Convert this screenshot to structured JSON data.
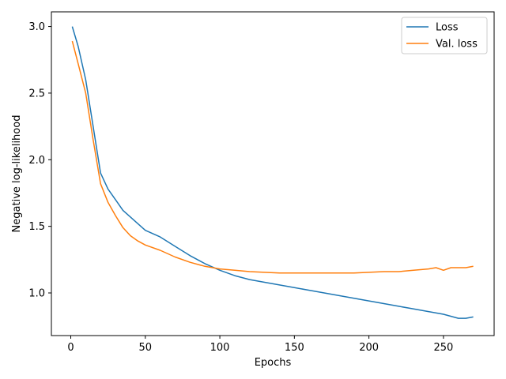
{
  "chart_data": {
    "type": "line",
    "xlabel": "Epochs",
    "ylabel": "Negative log-likelihood",
    "xlim": [
      -13,
      284
    ],
    "ylim": [
      0.68,
      3.11
    ],
    "xticks": [
      0,
      50,
      100,
      150,
      200,
      250
    ],
    "yticks": [
      1.0,
      1.5,
      2.0,
      2.5,
      3.0
    ],
    "ytick_labels": [
      "1.0",
      "1.5",
      "2.0",
      "2.5",
      "3.0"
    ],
    "grid": false,
    "legend_position": "top-right",
    "series": [
      {
        "name": "Loss",
        "color": "#1f77b4",
        "x": [
          1,
          5,
          10,
          15,
          20,
          25,
          30,
          35,
          40,
          45,
          50,
          60,
          70,
          80,
          90,
          100,
          110,
          120,
          130,
          140,
          150,
          160,
          170,
          180,
          190,
          200,
          210,
          220,
          230,
          240,
          250,
          260,
          265,
          270
        ],
        "y": [
          3.0,
          2.85,
          2.6,
          2.25,
          1.9,
          1.78,
          1.7,
          1.62,
          1.57,
          1.52,
          1.47,
          1.42,
          1.35,
          1.28,
          1.22,
          1.17,
          1.13,
          1.1,
          1.08,
          1.06,
          1.04,
          1.02,
          1.0,
          0.98,
          0.96,
          0.94,
          0.92,
          0.9,
          0.88,
          0.86,
          0.84,
          0.81,
          0.81,
          0.82
        ]
      },
      {
        "name": "Val. loss",
        "color": "#ff7f0e",
        "x": [
          1,
          5,
          10,
          15,
          20,
          25,
          30,
          35,
          40,
          45,
          50,
          60,
          70,
          80,
          90,
          100,
          110,
          120,
          130,
          140,
          150,
          160,
          170,
          180,
          190,
          200,
          210,
          220,
          230,
          240,
          245,
          250,
          255,
          260,
          265,
          270
        ],
        "y": [
          2.89,
          2.72,
          2.5,
          2.15,
          1.82,
          1.68,
          1.58,
          1.49,
          1.43,
          1.39,
          1.36,
          1.32,
          1.27,
          1.23,
          1.2,
          1.18,
          1.17,
          1.16,
          1.155,
          1.15,
          1.15,
          1.15,
          1.15,
          1.15,
          1.15,
          1.155,
          1.16,
          1.16,
          1.17,
          1.18,
          1.19,
          1.17,
          1.19,
          1.19,
          1.19,
          1.2
        ]
      }
    ]
  }
}
